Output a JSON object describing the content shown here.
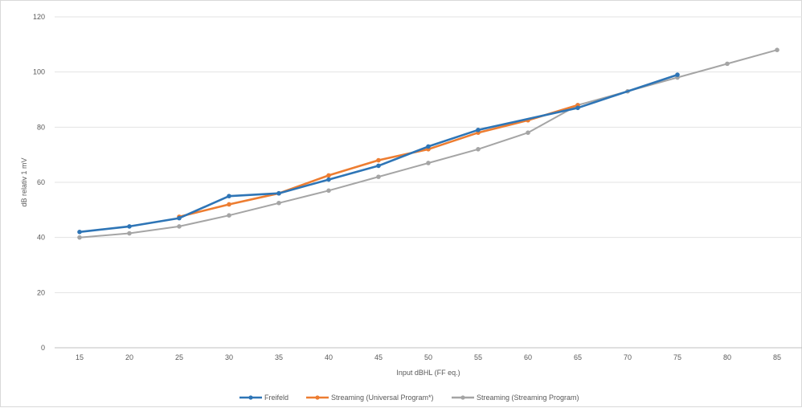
{
  "chart_data": {
    "type": "line",
    "title": "",
    "xlabel": "Input dBHL (FF eq.)",
    "ylabel": "dB relativ 1 mV",
    "categories": [
      "15",
      "20",
      "25",
      "30",
      "35",
      "40",
      "45",
      "50",
      "55",
      "60",
      "65",
      "70",
      "75",
      "80",
      "85"
    ],
    "ylim": [
      0,
      120
    ],
    "yticks": [
      0,
      20,
      40,
      60,
      80,
      100,
      120
    ],
    "grid": true,
    "legend_position": "bottom",
    "series": [
      {
        "name": "Freifeld",
        "color": "#2e75b6",
        "values": [
          42,
          44,
          47,
          55,
          56,
          61,
          66,
          73,
          79,
          null,
          87,
          null,
          99,
          null,
          null
        ]
      },
      {
        "name": "Streaming (Universal Program*)",
        "color": "#ed7d31",
        "values": [
          null,
          null,
          47.5,
          52,
          56,
          62.5,
          68,
          72,
          78,
          82.5,
          88,
          null,
          null,
          null,
          null
        ]
      },
      {
        "name": "Streaming (Streaming Program)",
        "color": "#a5a5a5",
        "values": [
          40,
          41.5,
          44,
          48,
          52.5,
          57,
          62,
          67,
          72,
          78,
          88,
          93,
          98,
          103,
          108
        ]
      }
    ]
  }
}
